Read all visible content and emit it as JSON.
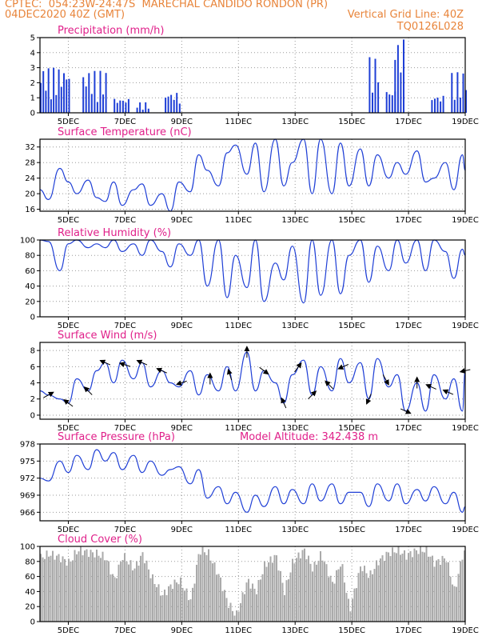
{
  "header": {
    "line1": "CPTEC:  054:23W-24:47S  MARECHAL CANDIDO RONDON (PR)",
    "line2_left": "04DEC2020 40Z (GMT)",
    "line2_right": "Vertical Grid Line: 40Z",
    "line3_right": "TQ0126L028"
  },
  "colors": {
    "header": "#e8843a",
    "title": "#e0208a",
    "series": "#1f3fd6",
    "cloud": "#aaaaaa",
    "grid": "#999999"
  },
  "chart_data": [
    {
      "type": "bar",
      "title": "Precipitation (mm/h)",
      "xticks": [
        "5DEC",
        "7DEC",
        "9DEC",
        "11DEC",
        "13DEC",
        "15DEC",
        "17DEC",
        "19DEC"
      ],
      "yticks": [
        "0",
        "1",
        "2",
        "3",
        "4",
        "5"
      ],
      "ylim": [
        0,
        5
      ],
      "bursts": [
        {
          "from": 4.0,
          "to": 5.0,
          "peak": 3.0
        },
        {
          "from": 5.5,
          "to": 6.3,
          "peak": 2.8
        },
        {
          "from": 6.6,
          "to": 7.1,
          "peak": 1.0
        },
        {
          "from": 7.4,
          "to": 7.8,
          "peak": 0.7
        },
        {
          "from": 8.4,
          "to": 8.9,
          "peak": 1.4
        },
        {
          "from": 15.6,
          "to": 15.9,
          "peak": 3.7
        },
        {
          "from": 16.2,
          "to": 16.5,
          "peak": 1.6
        },
        {
          "from": 16.5,
          "to": 16.8,
          "peak": 5.0
        },
        {
          "from": 17.8,
          "to": 18.2,
          "peak": 1.2
        },
        {
          "from": 18.5,
          "to": 19.0,
          "peak": 2.7
        }
      ]
    },
    {
      "type": "line",
      "title": "Surface Temperature (nC)",
      "xticks": [
        "5DEC",
        "7DEC",
        "9DEC",
        "11DEC",
        "13DEC",
        "15DEC",
        "17DEC",
        "19DEC"
      ],
      "yticks": [
        "16",
        "20",
        "24",
        "28",
        "32"
      ],
      "ylim": [
        15.5,
        34
      ],
      "x": [
        4.0,
        4.3,
        4.7,
        5.0,
        5.3,
        5.7,
        6.0,
        6.3,
        6.6,
        6.9,
        7.3,
        7.6,
        7.9,
        8.3,
        8.6,
        8.9,
        9.3,
        9.6,
        9.9,
        10.3,
        10.6,
        10.9,
        11.3,
        11.6,
        11.9,
        12.3,
        12.6,
        12.9,
        13.3,
        13.6,
        13.9,
        14.3,
        14.6,
        14.9,
        15.3,
        15.6,
        15.9,
        16.3,
        16.6,
        16.9,
        17.3,
        17.6,
        17.9,
        18.3,
        18.6,
        18.9,
        19.0
      ],
      "y": [
        21,
        18.5,
        26.5,
        23,
        20,
        23.5,
        19,
        18,
        23,
        17,
        21,
        22.5,
        17,
        20,
        15.5,
        23,
        20.5,
        30,
        26,
        22,
        30.5,
        32.5,
        25,
        33,
        20.5,
        34,
        22,
        28,
        34,
        20,
        34,
        20,
        33,
        22,
        31.5,
        22,
        30,
        24,
        28,
        25,
        31,
        23,
        24,
        28,
        21,
        30,
        26
      ]
    },
    {
      "type": "line",
      "title": "Relative Humidity (%)",
      "xticks": [
        "5DEC",
        "7DEC",
        "9DEC",
        "11DEC",
        "13DEC",
        "15DEC",
        "17DEC",
        "19DEC"
      ],
      "yticks": [
        "0",
        "20",
        "40",
        "60",
        "80",
        "100"
      ],
      "ylim": [
        0,
        100
      ],
      "x": [
        4.0,
        4.3,
        4.7,
        5.0,
        5.3,
        5.7,
        6.0,
        6.3,
        6.6,
        6.9,
        7.3,
        7.6,
        7.9,
        8.3,
        8.6,
        8.9,
        9.3,
        9.6,
        9.9,
        10.3,
        10.6,
        10.9,
        11.3,
        11.6,
        11.9,
        12.3,
        12.6,
        12.9,
        13.3,
        13.6,
        13.9,
        14.3,
        14.6,
        14.9,
        15.3,
        15.6,
        15.9,
        16.3,
        16.6,
        16.9,
        17.3,
        17.6,
        17.9,
        18.3,
        18.6,
        18.9,
        19.0
      ],
      "y": [
        100,
        98,
        60,
        95,
        100,
        90,
        95,
        90,
        100,
        85,
        95,
        80,
        100,
        85,
        65,
        95,
        80,
        100,
        40,
        100,
        25,
        80,
        38,
        100,
        20,
        70,
        48,
        92,
        18,
        100,
        28,
        100,
        30,
        80,
        100,
        45,
        92,
        60,
        100,
        70,
        100,
        60,
        100,
        85,
        50,
        88,
        80
      ]
    },
    {
      "type": "line",
      "title": "Surface Wind (m/s)",
      "xticks": [
        "5DEC",
        "7DEC",
        "9DEC",
        "11DEC",
        "13DEC",
        "15DEC",
        "17DEC",
        "19DEC"
      ],
      "yticks": [
        "0",
        "2",
        "4",
        "6",
        "8"
      ],
      "ylim": [
        -0.5,
        9
      ],
      "x": [
        4.0,
        4.3,
        4.7,
        5.0,
        5.3,
        5.7,
        6.0,
        6.3,
        6.6,
        6.9,
        7.3,
        7.6,
        7.9,
        8.3,
        8.6,
        8.9,
        9.3,
        9.6,
        9.9,
        10.3,
        10.6,
        10.9,
        11.3,
        11.6,
        11.9,
        12.3,
        12.6,
        12.9,
        13.3,
        13.6,
        13.9,
        14.3,
        14.6,
        14.9,
        15.3,
        15.6,
        15.9,
        16.3,
        16.6,
        16.9,
        17.3,
        17.6,
        17.9,
        18.3,
        18.6,
        18.9,
        19.0
      ],
      "y": [
        3,
        2.5,
        2,
        1.5,
        4.5,
        3,
        5.5,
        6.5,
        4,
        6.8,
        4.5,
        6.5,
        3.5,
        5.5,
        4,
        3.5,
        5.5,
        2.5,
        5,
        3,
        6,
        3,
        7.8,
        3,
        5.5,
        4,
        1.5,
        5,
        6.8,
        2.5,
        6,
        3,
        7,
        4,
        6.5,
        2,
        7,
        3.5,
        5,
        0.5,
        4,
        0.5,
        5,
        2,
        4.5,
        0.5,
        5.5
      ],
      "arrows": [
        {
          "x": 4.3,
          "dir": [
            0.9,
            -0.5
          ]
        },
        {
          "x": 5.0,
          "dir": [
            -0.8,
            -0.6
          ]
        },
        {
          "x": 5.7,
          "dir": [
            -0.7,
            -0.7
          ]
        },
        {
          "x": 6.3,
          "dir": [
            -0.9,
            -0.4
          ]
        },
        {
          "x": 7.0,
          "dir": [
            -0.95,
            -0.3
          ]
        },
        {
          "x": 7.6,
          "dir": [
            -0.9,
            -0.4
          ]
        },
        {
          "x": 8.3,
          "dir": [
            -0.9,
            -0.4
          ]
        },
        {
          "x": 9.0,
          "dir": [
            -0.9,
            0.3
          ]
        },
        {
          "x": 10.0,
          "dir": [
            0.0,
            -1.0
          ]
        },
        {
          "x": 10.7,
          "dir": [
            -0.3,
            -0.95
          ]
        },
        {
          "x": 11.3,
          "dir": [
            0.0,
            -1.0
          ]
        },
        {
          "x": 11.9,
          "dir": [
            0.8,
            0.6
          ]
        },
        {
          "x": 12.6,
          "dir": [
            -0.4,
            -0.9
          ]
        },
        {
          "x": 13.1,
          "dir": [
            0.6,
            -0.8
          ]
        },
        {
          "x": 13.6,
          "dir": [
            0.7,
            -0.7
          ]
        },
        {
          "x": 14.2,
          "dir": [
            -0.7,
            -0.7
          ]
        },
        {
          "x": 14.7,
          "dir": [
            -0.9,
            0.4
          ]
        },
        {
          "x": 15.6,
          "dir": [
            -0.4,
            0.9
          ]
        },
        {
          "x": 16.2,
          "dir": [
            0.5,
            0.9
          ]
        },
        {
          "x": 16.9,
          "dir": [
            0.9,
            0.4
          ]
        },
        {
          "x": 17.3,
          "dir": [
            0.0,
            -1.0
          ]
        },
        {
          "x": 17.8,
          "dir": [
            -0.9,
            -0.4
          ]
        },
        {
          "x": 18.4,
          "dir": [
            -0.9,
            -0.4
          ]
        },
        {
          "x": 19.0,
          "dir": [
            -0.9,
            0.2
          ]
        }
      ]
    },
    {
      "type": "line",
      "title": "Surface Pressure (hPa)",
      "annotation": "Model Altitude: 342.438  m",
      "xticks": [
        "5DEC",
        "7DEC",
        "9DEC",
        "11DEC",
        "13DEC",
        "15DEC",
        "17DEC",
        "19DEC"
      ],
      "yticks": [
        "966",
        "969",
        "972",
        "975",
        "978"
      ],
      "ylim": [
        964.5,
        978
      ],
      "x": [
        4.0,
        4.3,
        4.7,
        5.0,
        5.3,
        5.7,
        6.0,
        6.3,
        6.6,
        6.9,
        7.3,
        7.6,
        7.9,
        8.3,
        8.6,
        8.9,
        9.3,
        9.6,
        9.9,
        10.3,
        10.6,
        10.9,
        11.3,
        11.6,
        11.9,
        12.3,
        12.6,
        12.9,
        13.3,
        13.6,
        13.9,
        14.3,
        14.6,
        14.9,
        15.3,
        15.6,
        15.9,
        16.3,
        16.6,
        16.9,
        17.3,
        17.6,
        17.9,
        18.3,
        18.6,
        18.9,
        19.0
      ],
      "y": [
        972,
        971.5,
        975,
        973,
        976,
        973.5,
        977,
        975,
        976.5,
        973.5,
        976,
        973,
        975,
        972.5,
        973.5,
        974,
        971,
        973.5,
        968.5,
        970.5,
        967.5,
        969.5,
        966,
        969,
        967,
        970.5,
        967.5,
        970,
        967.5,
        971,
        968,
        971,
        967.5,
        969.5,
        969.5,
        967,
        971,
        968,
        971,
        967.5,
        970,
        968,
        970.5,
        967.5,
        969.5,
        966,
        967
      ]
    },
    {
      "type": "bar",
      "title": "Cloud Cover (%)",
      "xticks": [
        "5DEC",
        "7DEC",
        "9DEC",
        "11DEC",
        "13DEC",
        "15DEC",
        "17DEC",
        "19DEC"
      ],
      "yticks": [
        "0",
        "20",
        "40",
        "60",
        "80",
        "100"
      ],
      "ylim": [
        0,
        100
      ],
      "x": [
        4.0,
        4.3,
        4.7,
        5.0,
        5.3,
        5.7,
        6.0,
        6.3,
        6.6,
        6.9,
        7.3,
        7.6,
        7.9,
        8.3,
        8.6,
        8.9,
        9.3,
        9.6,
        9.9,
        10.3,
        10.6,
        10.9,
        11.3,
        11.6,
        11.9,
        12.3,
        12.6,
        12.9,
        13.3,
        13.6,
        13.9,
        14.3,
        14.6,
        14.9,
        15.3,
        15.6,
        15.9,
        16.3,
        16.6,
        16.9,
        17.3,
        17.6,
        17.9,
        18.3,
        18.6,
        18.9,
        19.0
      ],
      "y": [
        85,
        90,
        85,
        78,
        95,
        92,
        90,
        85,
        55,
        88,
        70,
        90,
        60,
        35,
        48,
        55,
        28,
        95,
        92,
        60,
        25,
        8,
        55,
        40,
        75,
        88,
        40,
        80,
        95,
        70,
        90,
        50,
        80,
        15,
        75,
        60,
        80,
        92,
        95,
        88,
        95,
        95,
        78,
        85,
        40,
        93,
        90
      ]
    }
  ]
}
